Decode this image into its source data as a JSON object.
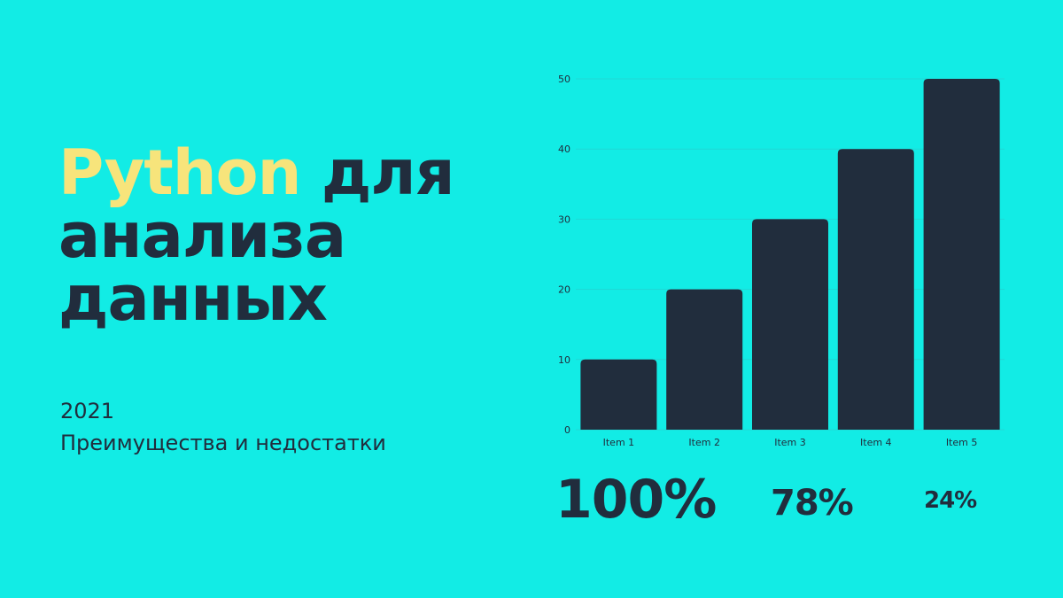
{
  "title": {
    "accent_word": "Python",
    "rest_line1": " для",
    "line2": "анализа",
    "line3": "данных"
  },
  "subtitle": {
    "year": "2021",
    "text": "Преимущества и недостатки"
  },
  "stats": [
    "100%",
    "78%",
    "24%"
  ],
  "colors": {
    "background": "#12ECE5",
    "dark": "#212D3D",
    "accent": "#F7E47B",
    "gridline": "#21D7D5"
  },
  "chart_data": {
    "type": "bar",
    "categories": [
      "Item 1",
      "Item 2",
      "Item 3",
      "Item 4",
      "Item 5"
    ],
    "values": [
      10,
      20,
      30,
      40,
      50
    ],
    "title": "",
    "xlabel": "",
    "ylabel": "",
    "ylim": [
      0,
      50
    ],
    "yticks": [
      0,
      10,
      20,
      30,
      40,
      50
    ],
    "grid": true,
    "legend": "none"
  }
}
